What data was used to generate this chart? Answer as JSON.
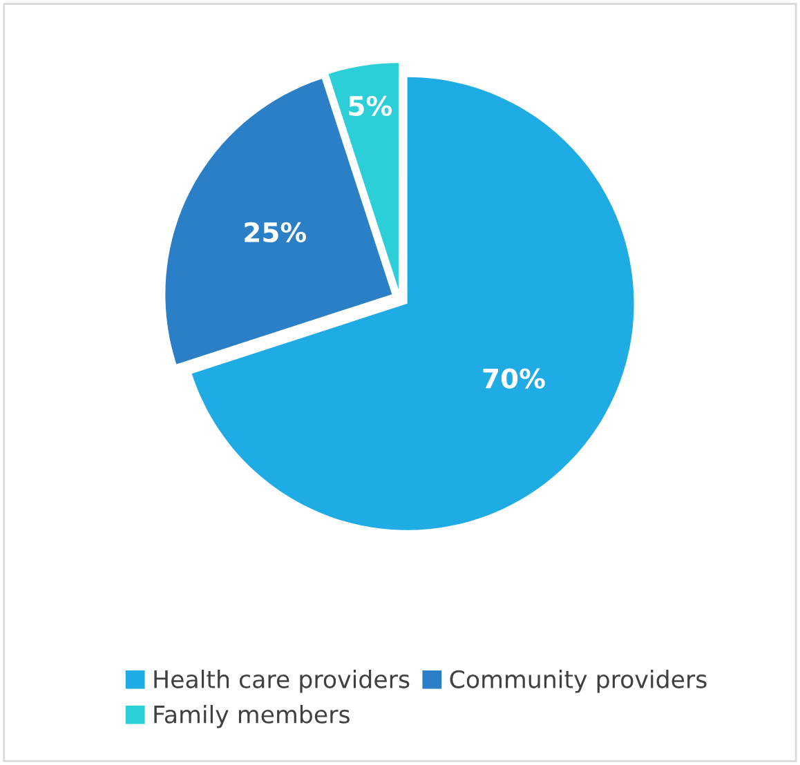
{
  "chart_data": {
    "type": "pie",
    "categories": [
      "Health care providers",
      "Community providers",
      "Family members"
    ],
    "values": [
      70,
      25,
      5
    ],
    "colors": [
      "#1fabe3",
      "#2a7fc6",
      "#2ccfd8"
    ],
    "value_labels": [
      "70%",
      "25%",
      "5%"
    ],
    "legend": "bottom"
  }
}
